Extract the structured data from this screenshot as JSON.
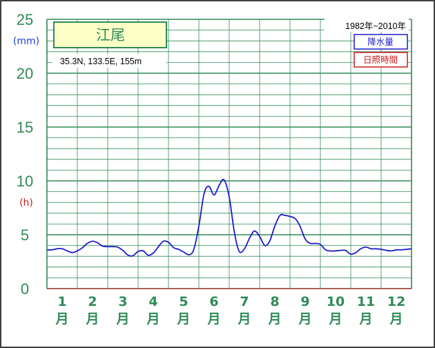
{
  "chart_data": {
    "type": "line",
    "station_name": "江尾",
    "location": "35.3N,  133.5E,  155m",
    "period": "1982年~2010年",
    "legend": [
      "降水量",
      "日照時間"
    ],
    "y_unit_left": "(mm)",
    "y_unit_right": "(h)",
    "y_ticks": [
      "0",
      "5",
      "10",
      "15",
      "20",
      "25"
    ],
    "ylim": [
      0,
      25
    ],
    "x_ticks": [
      {
        "num": "1",
        "unit": "月"
      },
      {
        "num": "2",
        "unit": "月"
      },
      {
        "num": "3",
        "unit": "月"
      },
      {
        "num": "4",
        "unit": "月"
      },
      {
        "num": "5",
        "unit": "月"
      },
      {
        "num": "6",
        "unit": "月"
      },
      {
        "num": "7",
        "unit": "月"
      },
      {
        "num": "8",
        "unit": "月"
      },
      {
        "num": "9",
        "unit": "月"
      },
      {
        "num": "10",
        "unit": "月"
      },
      {
        "num": "11",
        "unit": "月"
      },
      {
        "num": "12",
        "unit": "月"
      }
    ],
    "xlim": [
      0.5,
      12.5
    ],
    "grid": true,
    "series": [
      {
        "name": "降水量",
        "color": "#1a1acd",
        "x": [
          0.5,
          0.67,
          0.83,
          1.0,
          1.17,
          1.33,
          1.5,
          1.67,
          1.83,
          2.0,
          2.17,
          2.33,
          2.5,
          2.67,
          2.83,
          3.0,
          3.17,
          3.33,
          3.5,
          3.67,
          3.83,
          4.0,
          4.17,
          4.33,
          4.5,
          4.67,
          4.83,
          5.0,
          5.17,
          5.33,
          5.5,
          5.67,
          5.83,
          6.0,
          6.17,
          6.33,
          6.5,
          6.67,
          6.83,
          7.0,
          7.17,
          7.33,
          7.5,
          7.67,
          7.83,
          8.0,
          8.17,
          8.33,
          8.5,
          8.67,
          8.83,
          9.0,
          9.17,
          9.33,
          9.5,
          9.67,
          9.83,
          10.0,
          10.17,
          10.33,
          10.5,
          10.67,
          10.83,
          11.0,
          11.17,
          11.33,
          11.5,
          11.67,
          11.83,
          12.0,
          12.17,
          12.33,
          12.5
        ],
        "values": [
          3.6,
          3.6,
          3.7,
          3.7,
          3.5,
          3.35,
          3.5,
          3.8,
          4.2,
          4.4,
          4.25,
          3.95,
          3.9,
          3.9,
          3.85,
          3.55,
          3.1,
          3.05,
          3.45,
          3.5,
          3.1,
          3.3,
          3.9,
          4.4,
          4.3,
          3.8,
          3.65,
          3.4,
          3.15,
          3.6,
          5.8,
          8.8,
          9.5,
          8.7,
          9.6,
          10.1,
          8.5,
          5.2,
          3.45,
          3.7,
          4.7,
          5.35,
          4.85,
          4.0,
          4.4,
          5.8,
          6.8,
          6.8,
          6.7,
          6.5,
          5.8,
          4.6,
          4.2,
          4.2,
          4.1,
          3.6,
          3.5,
          3.5,
          3.55,
          3.55,
          3.2,
          3.35,
          3.7,
          3.85,
          3.7,
          3.7,
          3.65,
          3.55,
          3.5,
          3.6,
          3.6,
          3.65,
          3.7
        ]
      }
    ]
  }
}
